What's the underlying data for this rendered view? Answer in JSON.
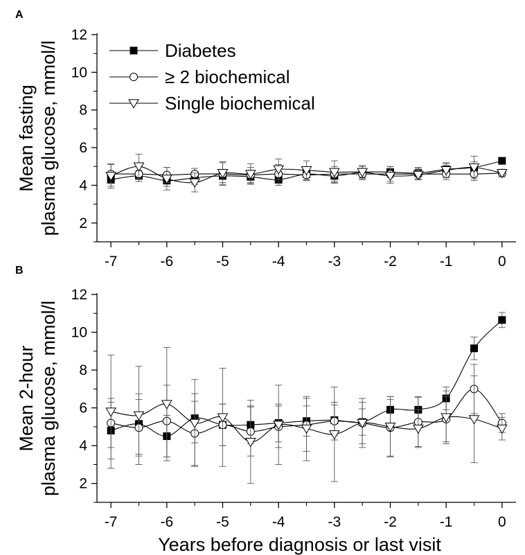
{
  "chart_data": [
    {
      "type": "line",
      "panel_label": "A",
      "title": "",
      "xlabel": "",
      "ylabel_lines": [
        "Mean fasting",
        "plasma glucose, mmol/l"
      ],
      "xlim": [
        -7.25,
        0.25
      ],
      "ylim": [
        1,
        12
      ],
      "x_ticks": [
        -7,
        -6,
        -5,
        -4,
        -3,
        -2,
        -1,
        0
      ],
      "y_ticks": [
        2,
        4,
        6,
        8,
        10,
        12
      ],
      "grid": false,
      "legend": "top-left",
      "series": [
        {
          "name": "Diabetes",
          "marker": "filled-square",
          "x": [
            -7,
            -6.5,
            -6,
            -5.5,
            -5,
            -4.5,
            -4,
            -3.5,
            -3,
            -2.5,
            -2,
            -1.5,
            -1,
            -0.5,
            0
          ],
          "y": [
            4.3,
            4.5,
            4.25,
            4.4,
            4.5,
            4.45,
            4.3,
            4.6,
            4.5,
            4.7,
            4.7,
            4.65,
            4.85,
            4.95,
            5.3
          ],
          "err": [
            0.35,
            0.3,
            0.3,
            0.35,
            0.35,
            0.35,
            0.3,
            0.3,
            0.35,
            0.3,
            0.3,
            0.3,
            0.3,
            0.3,
            0.15
          ]
        },
        {
          "name": "≥ 2 biochemical",
          "marker": "open-circle",
          "x": [
            -7,
            -6.5,
            -6,
            -5.5,
            -5,
            -4.5,
            -4,
            -3.5,
            -3,
            -2.5,
            -2,
            -1.5,
            -1,
            -0.5,
            0
          ],
          "y": [
            4.6,
            4.6,
            4.55,
            4.6,
            4.6,
            4.55,
            4.6,
            4.55,
            4.6,
            4.6,
            4.6,
            4.6,
            4.6,
            4.6,
            4.65
          ],
          "err": [
            0.5,
            0.4,
            0.4,
            0.3,
            0.6,
            0.4,
            0.5,
            0.3,
            0.4,
            0.3,
            0.4,
            0.3,
            0.3,
            0.35,
            0.2
          ]
        },
        {
          "name": "Single biochemical",
          "marker": "open-triangle-down",
          "x": [
            -7,
            -6.5,
            -6,
            -5.5,
            -5,
            -4.5,
            -4,
            -3.5,
            -3,
            -2.5,
            -2,
            -1.5,
            -1,
            -0.5,
            0
          ],
          "y": [
            4.5,
            5.0,
            4.35,
            4.15,
            4.65,
            4.6,
            4.85,
            4.8,
            4.7,
            4.7,
            4.5,
            4.55,
            4.8,
            4.95,
            4.65
          ],
          "err": [
            0.65,
            0.65,
            0.6,
            0.5,
            0.6,
            0.55,
            0.55,
            0.5,
            0.6,
            0.35,
            0.4,
            0.25,
            0.4,
            0.6,
            0.2
          ]
        }
      ]
    },
    {
      "type": "line",
      "panel_label": "B",
      "title": "",
      "xlabel": "Years before diagnosis or last visit",
      "ylabel_lines": [
        "Mean 2-hour",
        "plasma glucose, mmol/l"
      ],
      "xlim": [
        -7.25,
        0.25
      ],
      "ylim": [
        1,
        12
      ],
      "x_ticks": [
        -7,
        -6,
        -5,
        -4,
        -3,
        -2,
        -1,
        0
      ],
      "y_ticks": [
        2,
        4,
        6,
        8,
        10,
        12
      ],
      "grid": false,
      "legend": "none",
      "series": [
        {
          "name": "Diabetes",
          "marker": "filled-square",
          "x": [
            -7,
            -6.5,
            -6,
            -5.5,
            -5,
            -4.5,
            -4,
            -3.5,
            -3,
            -2.5,
            -2,
            -1.5,
            -1,
            -0.5,
            0
          ],
          "y": [
            4.8,
            5.15,
            4.5,
            5.45,
            5.1,
            5.1,
            5.2,
            5.3,
            5.35,
            5.25,
            5.9,
            5.9,
            6.5,
            9.15,
            10.65
          ],
          "err": [
            1.5,
            1.6,
            1.1,
            1.3,
            1.1,
            1.0,
            1.0,
            0.8,
            0.8,
            0.7,
            0.7,
            0.7,
            0.6,
            0.6,
            0.4
          ]
        },
        {
          "name": "≥ 2 biochemical",
          "marker": "open-circle",
          "x": [
            -7,
            -6.5,
            -6,
            -5.5,
            -5,
            -4.5,
            -4,
            -3.5,
            -3,
            -2.5,
            -2,
            -1.5,
            -1,
            -0.5,
            0
          ],
          "y": [
            5.2,
            4.95,
            5.3,
            4.65,
            5.1,
            4.75,
            5.0,
            5.1,
            5.3,
            5.2,
            4.95,
            5.25,
            5.4,
            7.0,
            5.2
          ],
          "err": [
            1.3,
            1.5,
            1.9,
            1.7,
            1.1,
            1.3,
            1.1,
            1.4,
            1.0,
            1.1,
            1.5,
            1.3,
            1.2,
            1.3,
            0.5
          ]
        },
        {
          "name": "Single biochemical",
          "marker": "open-triangle-down",
          "x": [
            -7,
            -6.5,
            -6,
            -5.5,
            -5,
            -4.5,
            -4,
            -3.5,
            -3,
            -2.5,
            -2,
            -1.5,
            -1,
            -0.5,
            0
          ],
          "y": [
            5.8,
            5.6,
            6.2,
            5.2,
            5.5,
            4.2,
            5.1,
            4.9,
            4.6,
            5.2,
            5.0,
            4.9,
            5.5,
            5.4,
            4.9
          ],
          "err": [
            3.0,
            2.6,
            3.0,
            2.3,
            2.6,
            2.2,
            2.1,
            1.7,
            2.5,
            1.3,
            1.6,
            1.0,
            1.4,
            2.3,
            0.6
          ]
        }
      ]
    }
  ]
}
